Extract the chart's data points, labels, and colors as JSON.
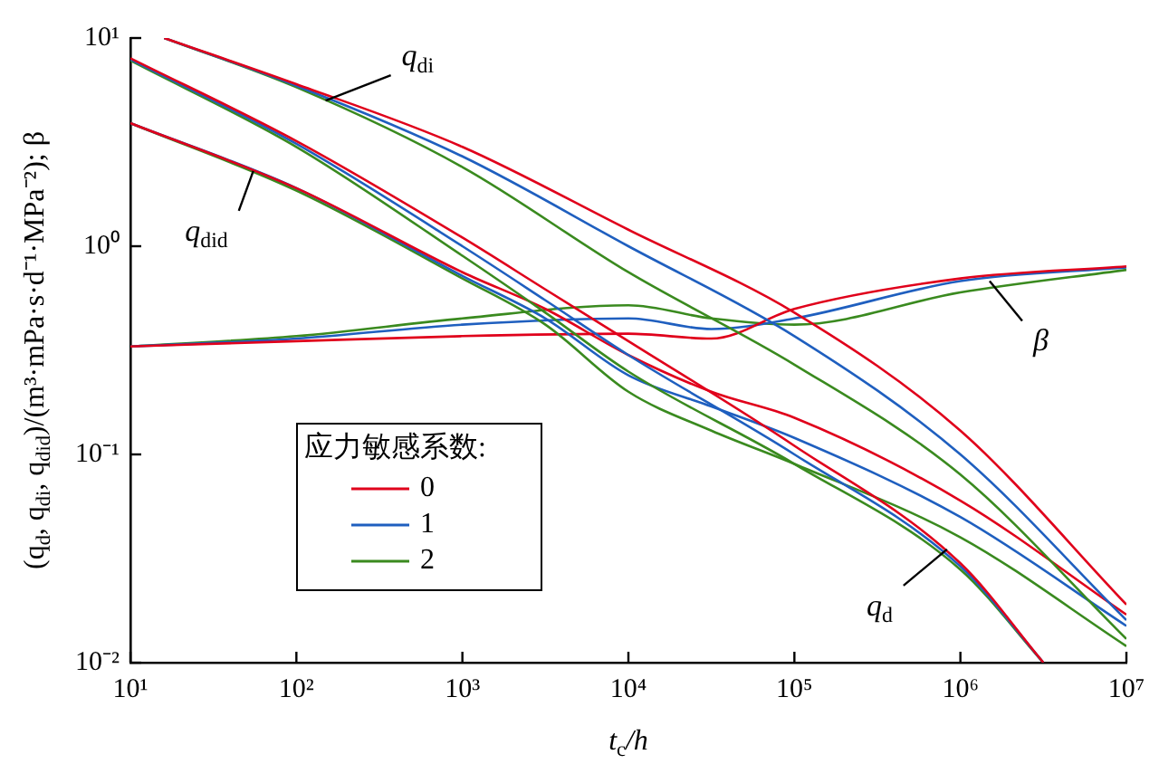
{
  "chart_data": {
    "type": "line",
    "xlabel": "t$_{c}$/h",
    "ylabel": "(q$_{d}$, q$_{di}$, q$_{did}$)/(m³·mPa·s·d⁻¹·MPa⁻²); β",
    "log": "xy",
    "xlim": [
      10,
      10000000
    ],
    "xticks": [
      {
        "value": 10,
        "label": "10¹"
      },
      {
        "value": 100,
        "label": "10²"
      },
      {
        "value": 1000,
        "label": "10³"
      },
      {
        "value": 10000,
        "label": "10⁴"
      },
      {
        "value": 100000,
        "label": "10⁵"
      },
      {
        "value": 1000000,
        "label": "10⁶"
      },
      {
        "value": 10000000,
        "label": "10⁷"
      }
    ],
    "ylim": [
      0.01,
      10
    ],
    "yticks": [
      {
        "value": 0.01,
        "label": "10⁻²"
      },
      {
        "value": 0.1,
        "label": "10⁻¹"
      },
      {
        "value": 1,
        "label": "10⁰"
      },
      {
        "value": 10,
        "label": "10¹"
      }
    ],
    "grid": false,
    "legend": "bottom left",
    "legend_title": "应力敏感系数:",
    "marker": "none",
    "line_style": "solid",
    "series": [
      {
        "name": "0",
        "color": "#e0001b",
        "x": [
          16,
          100,
          1000,
          10000,
          100000,
          1000000,
          10000000
        ],
        "values": [
          10,
          6.0,
          3.0,
          1.2,
          0.48,
          0.13,
          0.019
        ]
      },
      {
        "name": "1",
        "color": "#1f5fbf",
        "x": [
          16,
          100,
          1000,
          10000,
          100000,
          1000000,
          10000000
        ],
        "values": [
          10,
          5.9,
          2.7,
          1.0,
          0.37,
          0.1,
          0.016
        ]
      },
      {
        "name": "2",
        "color": "#3a8a1f",
        "x": [
          16,
          100,
          1000,
          10000,
          100000,
          1000000,
          10000000
        ],
        "values": [
          10,
          5.8,
          2.4,
          0.75,
          0.27,
          0.08,
          0.013
        ]
      },
      {
        "color": "#e0001b",
        "x": [
          10,
          100,
          1000,
          3162,
          10000,
          100000,
          1000000,
          3162000
        ],
        "values": [
          8,
          3.2,
          1.1,
          0.62,
          0.35,
          0.11,
          0.03,
          0.01
        ]
      },
      {
        "color": "#1f5fbf",
        "x": [
          10,
          100,
          1000,
          3162,
          10000,
          100000,
          1000000,
          3162000
        ],
        "values": [
          7.9,
          3.1,
          1.0,
          0.55,
          0.3,
          0.1,
          0.029,
          0.01
        ]
      },
      {
        "color": "#3a8a1f",
        "x": [
          10,
          100,
          1000,
          3162,
          10000,
          100000,
          1000000,
          3162000
        ],
        "values": [
          7.8,
          3.0,
          0.9,
          0.48,
          0.25,
          0.09,
          0.028,
          0.01
        ]
      },
      {
        "color": "#e0001b",
        "x": [
          10,
          100,
          1000,
          3162,
          10000,
          31620,
          100000,
          1000000,
          10000000
        ],
        "values": [
          3.9,
          1.9,
          0.75,
          0.5,
          0.3,
          0.2,
          0.15,
          0.06,
          0.017
        ]
      },
      {
        "color": "#1f5fbf",
        "x": [
          10,
          100,
          1000,
          3162,
          10000,
          31620,
          100000,
          1000000,
          10000000
        ],
        "values": [
          3.9,
          1.9,
          0.72,
          0.45,
          0.24,
          0.17,
          0.12,
          0.05,
          0.015
        ]
      },
      {
        "color": "#3a8a1f",
        "x": [
          10,
          100,
          1000,
          3162,
          10000,
          31620,
          100000,
          1000000,
          10000000
        ],
        "values": [
          3.9,
          1.85,
          0.7,
          0.42,
          0.2,
          0.13,
          0.09,
          0.04,
          0.012
        ]
      },
      {
        "color": "#e0001b",
        "x": [
          10,
          100,
          1000,
          10000,
          31620,
          100000,
          1000000,
          10000000
        ],
        "values": [
          0.33,
          0.35,
          0.37,
          0.38,
          0.36,
          0.5,
          0.7,
          0.8
        ]
      },
      {
        "color": "#1f5fbf",
        "x": [
          10,
          100,
          1000,
          10000,
          31620,
          100000,
          1000000,
          10000000
        ],
        "values": [
          0.33,
          0.36,
          0.42,
          0.45,
          0.4,
          0.45,
          0.68,
          0.79
        ]
      },
      {
        "color": "#3a8a1f",
        "x": [
          10,
          100,
          1000,
          10000,
          31620,
          100000,
          1000000,
          10000000
        ],
        "values": [
          0.33,
          0.37,
          0.45,
          0.52,
          0.45,
          0.42,
          0.6,
          0.77
        ]
      }
    ],
    "annotations": [
      {
        "text": "q$_{di}$",
        "x": 150,
        "y": 5
      },
      {
        "text": "q$_{did}$",
        "x": 55,
        "y": 2.3
      },
      {
        "text": "q$_{d}$",
        "x": 830000,
        "y": 0.035
      },
      {
        "text": "β",
        "x": 1500000,
        "y": 0.68
      }
    ]
  }
}
